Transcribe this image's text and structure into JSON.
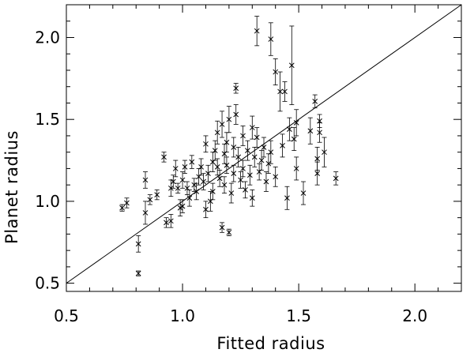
{
  "chart_data": {
    "type": "scatter",
    "title": "",
    "xlabel": "Fitted radius",
    "ylabel": "Planet radius",
    "xlim": [
      0.5,
      2.2
    ],
    "ylim": [
      0.45,
      2.2
    ],
    "xticks": [
      "0.5",
      "1.0",
      "1.5",
      "2.0"
    ],
    "xtick_values": [
      0.5,
      1.0,
      1.5,
      2.0
    ],
    "yticks": [
      "0.5",
      "1.0",
      "1.5",
      "2.0"
    ],
    "ytick_values": [
      0.5,
      1.0,
      1.5,
      2.0
    ],
    "grid": false,
    "marker": "x",
    "reference_line": "y = x",
    "points": [
      {
        "x": 0.74,
        "y": 0.96,
        "yerr": 0.02
      },
      {
        "x": 0.76,
        "y": 0.99,
        "yerr": 0.03
      },
      {
        "x": 0.81,
        "y": 0.56,
        "yerr": 0.015
      },
      {
        "x": 0.81,
        "y": 0.74,
        "yerr": 0.05
      },
      {
        "x": 0.84,
        "y": 0.93,
        "yerr": 0.07
      },
      {
        "x": 0.84,
        "y": 1.13,
        "yerr": 0.05
      },
      {
        "x": 0.86,
        "y": 1.01,
        "yerr": 0.03
      },
      {
        "x": 0.89,
        "y": 1.04,
        "yerr": 0.03
      },
      {
        "x": 0.92,
        "y": 1.27,
        "yerr": 0.03
      },
      {
        "x": 0.93,
        "y": 0.87,
        "yerr": 0.03
      },
      {
        "x": 0.95,
        "y": 0.88,
        "yerr": 0.04
      },
      {
        "x": 0.95,
        "y": 1.08,
        "yerr": 0.05
      },
      {
        "x": 0.96,
        "y": 1.12,
        "yerr": 0.04
      },
      {
        "x": 0.97,
        "y": 1.2,
        "yerr": 0.05
      },
      {
        "x": 0.98,
        "y": 1.08,
        "yerr": 0.03
      },
      {
        "x": 0.99,
        "y": 0.96,
        "yerr": 0.05
      },
      {
        "x": 1.0,
        "y": 0.97,
        "yerr": 0.04
      },
      {
        "x": 1.0,
        "y": 1.13,
        "yerr": 0.05
      },
      {
        "x": 1.01,
        "y": 1.21,
        "yerr": 0.04
      },
      {
        "x": 1.02,
        "y": 1.08,
        "yerr": 0.04
      },
      {
        "x": 1.03,
        "y": 1.02,
        "yerr": 0.05
      },
      {
        "x": 1.04,
        "y": 1.24,
        "yerr": 0.04
      },
      {
        "x": 1.05,
        "y": 1.1,
        "yerr": 0.04
      },
      {
        "x": 1.06,
        "y": 1.06,
        "yerr": 0.05
      },
      {
        "x": 1.07,
        "y": 1.15,
        "yerr": 0.05
      },
      {
        "x": 1.08,
        "y": 1.21,
        "yerr": 0.05
      },
      {
        "x": 1.09,
        "y": 1.12,
        "yerr": 0.05
      },
      {
        "x": 1.1,
        "y": 1.35,
        "yerr": 0.05
      },
      {
        "x": 1.1,
        "y": 0.95,
        "yerr": 0.05
      },
      {
        "x": 1.11,
        "y": 1.17,
        "yerr": 0.05
      },
      {
        "x": 1.12,
        "y": 1.0,
        "yerr": 0.06
      },
      {
        "x": 1.13,
        "y": 1.24,
        "yerr": 0.06
      },
      {
        "x": 1.13,
        "y": 1.06,
        "yerr": 0.05
      },
      {
        "x": 1.14,
        "y": 1.31,
        "yerr": 0.06
      },
      {
        "x": 1.15,
        "y": 1.42,
        "yerr": 0.07
      },
      {
        "x": 1.15,
        "y": 1.21,
        "yerr": 0.05
      },
      {
        "x": 1.16,
        "y": 1.14,
        "yerr": 0.05
      },
      {
        "x": 1.17,
        "y": 1.47,
        "yerr": 0.08
      },
      {
        "x": 1.17,
        "y": 0.84,
        "yerr": 0.03
      },
      {
        "x": 1.18,
        "y": 1.29,
        "yerr": 0.06
      },
      {
        "x": 1.18,
        "y": 1.1,
        "yerr": 0.05
      },
      {
        "x": 1.19,
        "y": 1.36,
        "yerr": 0.06
      },
      {
        "x": 1.19,
        "y": 1.22,
        "yerr": 0.05
      },
      {
        "x": 1.2,
        "y": 1.5,
        "yerr": 0.08
      },
      {
        "x": 1.2,
        "y": 0.81,
        "yerr": 0.02
      },
      {
        "x": 1.21,
        "y": 1.05,
        "yerr": 0.06
      },
      {
        "x": 1.22,
        "y": 1.33,
        "yerr": 0.06
      },
      {
        "x": 1.22,
        "y": 1.17,
        "yerr": 0.05
      },
      {
        "x": 1.23,
        "y": 1.69,
        "yerr": 0.03
      },
      {
        "x": 1.23,
        "y": 1.53,
        "yerr": 0.06
      },
      {
        "x": 1.24,
        "y": 1.27,
        "yerr": 0.06
      },
      {
        "x": 1.25,
        "y": 1.13,
        "yerr": 0.05
      },
      {
        "x": 1.26,
        "y": 1.4,
        "yerr": 0.06
      },
      {
        "x": 1.26,
        "y": 1.2,
        "yerr": 0.05
      },
      {
        "x": 1.27,
        "y": 1.07,
        "yerr": 0.05
      },
      {
        "x": 1.28,
        "y": 1.31,
        "yerr": 0.06
      },
      {
        "x": 1.29,
        "y": 1.16,
        "yerr": 0.06
      },
      {
        "x": 1.3,
        "y": 1.45,
        "yerr": 0.07
      },
      {
        "x": 1.3,
        "y": 1.02,
        "yerr": 0.05
      },
      {
        "x": 1.31,
        "y": 1.27,
        "yerr": 0.06
      },
      {
        "x": 1.32,
        "y": 2.04,
        "yerr": 0.09
      },
      {
        "x": 1.32,
        "y": 1.39,
        "yerr": 0.06
      },
      {
        "x": 1.33,
        "y": 1.18,
        "yerr": 0.05
      },
      {
        "x": 1.34,
        "y": 1.25,
        "yerr": 0.06
      },
      {
        "x": 1.35,
        "y": 1.33,
        "yerr": 0.06
      },
      {
        "x": 1.36,
        "y": 1.12,
        "yerr": 0.06
      },
      {
        "x": 1.37,
        "y": 1.23,
        "yerr": 0.06
      },
      {
        "x": 1.38,
        "y": 1.99,
        "yerr": 0.1
      },
      {
        "x": 1.38,
        "y": 1.3,
        "yerr": 0.07
      },
      {
        "x": 1.4,
        "y": 1.79,
        "yerr": 0.08
      },
      {
        "x": 1.4,
        "y": 1.15,
        "yerr": 0.06
      },
      {
        "x": 1.42,
        "y": 1.67,
        "yerr": 0.12
      },
      {
        "x": 1.43,
        "y": 1.34,
        "yerr": 0.07
      },
      {
        "x": 1.44,
        "y": 1.67,
        "yerr": 0.06
      },
      {
        "x": 1.45,
        "y": 1.02,
        "yerr": 0.07
      },
      {
        "x": 1.46,
        "y": 1.44,
        "yerr": 0.07
      },
      {
        "x": 1.47,
        "y": 1.83,
        "yerr": 0.24
      },
      {
        "x": 1.48,
        "y": 1.38,
        "yerr": 0.07
      },
      {
        "x": 1.49,
        "y": 1.2,
        "yerr": 0.07
      },
      {
        "x": 1.49,
        "y": 1.48,
        "yerr": 0.08
      },
      {
        "x": 1.52,
        "y": 1.05,
        "yerr": 0.07
      },
      {
        "x": 1.55,
        "y": 1.43,
        "yerr": 0.08
      },
      {
        "x": 1.57,
        "y": 1.61,
        "yerr": 0.04
      },
      {
        "x": 1.58,
        "y": 1.26,
        "yerr": 0.07
      },
      {
        "x": 1.58,
        "y": 1.17,
        "yerr": 0.07
      },
      {
        "x": 1.59,
        "y": 1.49,
        "yerr": 0.04
      },
      {
        "x": 1.59,
        "y": 1.42,
        "yerr": 0.06
      },
      {
        "x": 1.61,
        "y": 1.3,
        "yerr": 0.09
      },
      {
        "x": 1.66,
        "y": 1.14,
        "yerr": 0.04
      }
    ]
  }
}
